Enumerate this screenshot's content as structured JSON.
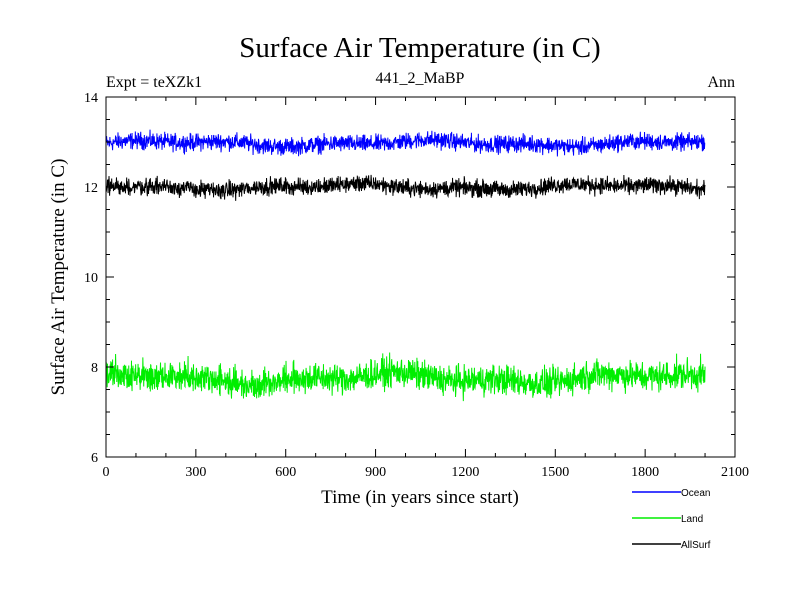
{
  "chart_data": {
    "type": "line",
    "title": "Surface Air Temperature (in C)",
    "subtitle": "441_2_MaBP",
    "left_label": "Expt = teXZk1",
    "right_label": "Ann",
    "xlabel": "Time (in years since start)",
    "ylabel": "Surface Air Temperature (in C)",
    "xlim": [
      0,
      2100
    ],
    "ylim": [
      6,
      14
    ],
    "xticks": [
      0,
      300,
      600,
      900,
      1200,
      1500,
      1800,
      2100
    ],
    "yticks": [
      6,
      8,
      10,
      12,
      14
    ],
    "x_minor_step": 100,
    "y_minor_step": 0.5,
    "series": [
      {
        "name": "Ocean",
        "color": "#0000ff",
        "mean": 12.97,
        "amplitude": 0.2,
        "x_start": 1,
        "x_end": 2000,
        "x_step": 1
      },
      {
        "name": "Land",
        "color": "#00ee00",
        "mean": 7.75,
        "amplitude": 0.35,
        "x_start": 1,
        "x_end": 2000,
        "x_step": 1
      },
      {
        "name": "AllSurf",
        "color": "#000000",
        "mean": 12.0,
        "amplitude": 0.2,
        "x_start": 1,
        "x_end": 2000,
        "x_step": 1
      }
    ],
    "legend": [
      "Ocean",
      "Land",
      "AllSurf"
    ],
    "legend_position": "bottom-right",
    "grid": false
  }
}
